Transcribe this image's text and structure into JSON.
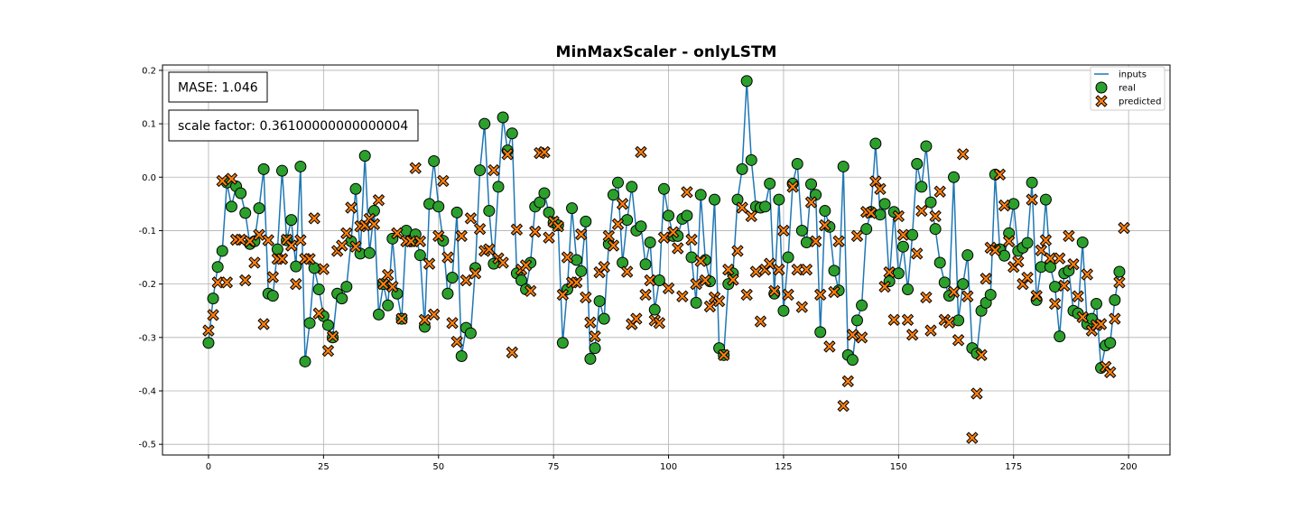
{
  "chart_data": {
    "type": "line",
    "title": "MinMaxScaler - onlyLSTM",
    "xlabel": "",
    "ylabel": "",
    "xlim": [
      -10,
      209
    ],
    "ylim": [
      -0.52,
      0.21
    ],
    "xticks": [
      0,
      25,
      50,
      75,
      100,
      125,
      150,
      175,
      200
    ],
    "yticks": [
      -0.5,
      -0.4,
      -0.3,
      -0.2,
      -0.1,
      0.0,
      0.1,
      0.2
    ],
    "grid": true,
    "legend_position": "top-right",
    "annotations": [
      "MASE: 1.046",
      "scale factor: 0.36100000000000004"
    ],
    "colors": {
      "inputs": "#1f77b4",
      "real": "#2ca02c",
      "predicted": "#ff7f0e"
    },
    "x_start": 0,
    "series": [
      {
        "name": "inputs",
        "marker": "line",
        "values": [
          -0.31,
          -0.227,
          -0.168,
          -0.138,
          -0.01,
          -0.055,
          -0.017,
          -0.03,
          -0.067,
          -0.125,
          -0.12,
          -0.058,
          0.015,
          -0.218,
          -0.222,
          -0.135,
          0.012,
          -0.118,
          -0.08,
          -0.167,
          0.02,
          -0.345,
          -0.273,
          -0.17,
          -0.21,
          -0.26,
          -0.277,
          -0.3,
          -0.218,
          -0.227,
          -0.205,
          -0.12,
          -0.022,
          -0.143,
          0.04,
          -0.142,
          -0.063,
          -0.257,
          -0.2,
          -0.24,
          -0.115,
          -0.218,
          -0.265,
          -0.1,
          -0.12,
          -0.107,
          -0.146,
          -0.28,
          -0.05,
          0.03,
          -0.055,
          -0.119,
          -0.218,
          -0.188,
          -0.066,
          -0.335,
          -0.282,
          -0.292,
          -0.17,
          0.013,
          0.1,
          -0.063,
          -0.162,
          -0.018,
          0.112,
          0.05,
          0.082,
          -0.18,
          -0.193,
          -0.21,
          -0.16,
          -0.055,
          -0.047,
          -0.03,
          -0.066,
          -0.085,
          -0.09,
          -0.31,
          -0.21,
          -0.058,
          -0.155,
          -0.176,
          -0.083,
          -0.34,
          -0.32,
          -0.232,
          -0.265,
          -0.125,
          -0.033,
          -0.01,
          -0.16,
          -0.08,
          -0.018,
          -0.1,
          -0.092,
          -0.163,
          -0.122,
          -0.248,
          -0.193,
          -0.022,
          -0.072,
          -0.11,
          -0.11,
          -0.078,
          -0.072,
          -0.15,
          -0.235,
          -0.033,
          -0.155,
          -0.195,
          -0.042,
          -0.32,
          -0.333,
          -0.2,
          -0.18,
          -0.042,
          0.015,
          0.18,
          0.032,
          -0.055,
          -0.057,
          -0.055,
          -0.012,
          -0.218,
          -0.042,
          -0.25,
          -0.15,
          -0.012,
          0.025,
          -0.1,
          -0.122,
          -0.013,
          -0.033,
          -0.29,
          -0.063,
          -0.093,
          -0.175,
          -0.212,
          0.02,
          -0.333,
          -0.342,
          -0.268,
          -0.24,
          -0.097,
          -0.065,
          0.063,
          -0.07,
          -0.05,
          -0.195,
          -0.065,
          -0.18,
          -0.13,
          -0.21,
          -0.108,
          0.025,
          -0.018,
          0.058,
          -0.047,
          -0.097,
          -0.16,
          -0.197,
          -0.222,
          0.0,
          -0.268,
          -0.2,
          -0.146,
          -0.32,
          -0.33,
          -0.25,
          -0.235,
          -0.22,
          0.005,
          -0.135,
          -0.147,
          -0.105,
          -0.05,
          -0.138,
          -0.132,
          -0.123,
          -0.01,
          -0.23,
          -0.168,
          -0.042,
          -0.168,
          -0.205,
          -0.298,
          -0.18,
          -0.175,
          -0.25,
          -0.255,
          -0.122,
          -0.275,
          -0.265,
          -0.237,
          -0.357,
          -0.315,
          -0.31,
          -0.23,
          -0.177
        ]
      },
      {
        "name": "real",
        "marker": "circle",
        "values": [
          -0.31,
          -0.227,
          -0.168,
          -0.138,
          -0.01,
          -0.055,
          -0.017,
          -0.03,
          -0.067,
          -0.125,
          -0.12,
          -0.058,
          0.015,
          -0.218,
          -0.222,
          -0.135,
          0.012,
          -0.118,
          -0.08,
          -0.167,
          0.02,
          -0.345,
          -0.273,
          -0.17,
          -0.21,
          -0.26,
          -0.277,
          -0.3,
          -0.218,
          -0.227,
          -0.205,
          -0.12,
          -0.022,
          -0.143,
          0.04,
          -0.142,
          -0.063,
          -0.257,
          -0.2,
          -0.24,
          -0.115,
          -0.218,
          -0.265,
          -0.1,
          -0.12,
          -0.107,
          -0.146,
          -0.28,
          -0.05,
          0.03,
          -0.055,
          -0.119,
          -0.218,
          -0.188,
          -0.066,
          -0.335,
          -0.282,
          -0.292,
          -0.17,
          0.013,
          0.1,
          -0.063,
          -0.162,
          -0.018,
          0.112,
          0.05,
          0.082,
          -0.18,
          -0.193,
          -0.21,
          -0.16,
          -0.055,
          -0.047,
          -0.03,
          -0.066,
          -0.085,
          -0.09,
          -0.31,
          -0.21,
          -0.058,
          -0.155,
          -0.176,
          -0.083,
          -0.34,
          -0.32,
          -0.232,
          -0.265,
          -0.125,
          -0.033,
          -0.01,
          -0.16,
          -0.08,
          -0.018,
          -0.1,
          -0.092,
          -0.163,
          -0.122,
          -0.248,
          -0.193,
          -0.022,
          -0.072,
          -0.11,
          -0.11,
          -0.078,
          -0.072,
          -0.15,
          -0.235,
          -0.033,
          -0.155,
          -0.195,
          -0.042,
          -0.32,
          -0.333,
          -0.2,
          -0.18,
          -0.042,
          0.015,
          0.18,
          0.032,
          -0.055,
          -0.057,
          -0.055,
          -0.012,
          -0.218,
          -0.042,
          -0.25,
          -0.15,
          -0.012,
          0.025,
          -0.1,
          -0.122,
          -0.013,
          -0.033,
          -0.29,
          -0.063,
          -0.093,
          -0.175,
          -0.212,
          0.02,
          -0.333,
          -0.342,
          -0.268,
          -0.24,
          -0.097,
          -0.065,
          0.063,
          -0.07,
          -0.05,
          -0.195,
          -0.065,
          -0.18,
          -0.13,
          -0.21,
          -0.108,
          0.025,
          -0.018,
          0.058,
          -0.047,
          -0.097,
          -0.16,
          -0.197,
          -0.222,
          0.0,
          -0.268,
          -0.2,
          -0.146,
          -0.32,
          -0.33,
          -0.25,
          -0.235,
          -0.22,
          0.005,
          -0.135,
          -0.147,
          -0.105,
          -0.05,
          -0.138,
          -0.132,
          -0.123,
          -0.01,
          -0.23,
          -0.168,
          -0.042,
          -0.168,
          -0.205,
          -0.298,
          -0.18,
          -0.175,
          -0.25,
          -0.255,
          -0.122,
          -0.275,
          -0.265,
          -0.237,
          -0.357,
          -0.315,
          -0.31,
          -0.23,
          -0.177
        ]
      },
      {
        "name": "predicted",
        "marker": "x",
        "values": [
          -0.287,
          -0.258,
          -0.197,
          -0.007,
          -0.197,
          -0.003,
          -0.117,
          -0.117,
          -0.193,
          -0.12,
          -0.16,
          -0.108,
          -0.275,
          -0.118,
          -0.187,
          -0.153,
          -0.153,
          -0.117,
          -0.128,
          -0.2,
          -0.118,
          -0.153,
          -0.153,
          -0.077,
          -0.255,
          -0.172,
          -0.325,
          -0.298,
          -0.138,
          -0.128,
          -0.105,
          -0.057,
          -0.13,
          -0.092,
          -0.09,
          -0.078,
          -0.088,
          -0.043,
          -0.2,
          -0.183,
          -0.205,
          -0.105,
          -0.265,
          -0.12,
          -0.12,
          0.017,
          -0.12,
          -0.267,
          -0.162,
          -0.257,
          -0.11,
          -0.007,
          -0.15,
          -0.273,
          -0.308,
          -0.11,
          -0.193,
          -0.077,
          -0.18,
          -0.097,
          -0.138,
          -0.135,
          0.013,
          -0.152,
          -0.16,
          0.043,
          -0.328,
          -0.098,
          -0.173,
          -0.165,
          -0.213,
          -0.102,
          0.045,
          0.047,
          -0.113,
          -0.083,
          -0.092,
          -0.22,
          -0.15,
          -0.197,
          -0.197,
          -0.107,
          -0.225,
          -0.272,
          -0.298,
          -0.178,
          -0.168,
          -0.11,
          -0.128,
          -0.088,
          -0.05,
          -0.177,
          -0.275,
          -0.265,
          0.047,
          -0.22,
          -0.193,
          -0.268,
          -0.273,
          -0.113,
          -0.208,
          -0.103,
          -0.133,
          -0.223,
          -0.028,
          -0.117,
          -0.2,
          -0.157,
          -0.193,
          -0.242,
          -0.225,
          -0.232,
          -0.333,
          -0.173,
          -0.192,
          -0.138,
          -0.057,
          -0.22,
          -0.073,
          -0.177,
          -0.27,
          -0.173,
          -0.162,
          -0.213,
          -0.173,
          -0.1,
          -0.22,
          -0.018,
          -0.173,
          -0.243,
          -0.173,
          -0.047,
          -0.12,
          -0.22,
          -0.09,
          -0.317,
          -0.215,
          -0.12,
          -0.428,
          -0.382,
          -0.295,
          -0.11,
          -0.3,
          -0.065,
          -0.067,
          -0.008,
          -0.022,
          -0.205,
          -0.178,
          -0.267,
          -0.073,
          -0.108,
          -0.267,
          -0.295,
          -0.143,
          -0.063,
          -0.225,
          -0.287,
          -0.073,
          -0.027,
          -0.267,
          -0.272,
          -0.215,
          -0.305,
          0.043,
          -0.223,
          -0.488,
          -0.405,
          -0.333,
          -0.19,
          -0.132,
          -0.137,
          0.005,
          -0.053,
          -0.12,
          -0.168,
          -0.158,
          -0.2,
          -0.188,
          -0.042,
          -0.222,
          -0.137,
          -0.118,
          -0.152,
          -0.237,
          -0.152,
          -0.203,
          -0.11,
          -0.163,
          -0.223,
          -0.262,
          -0.182,
          -0.287,
          -0.277,
          -0.275,
          -0.355,
          -0.365,
          -0.265,
          -0.197,
          -0.095
        ]
      }
    ]
  }
}
